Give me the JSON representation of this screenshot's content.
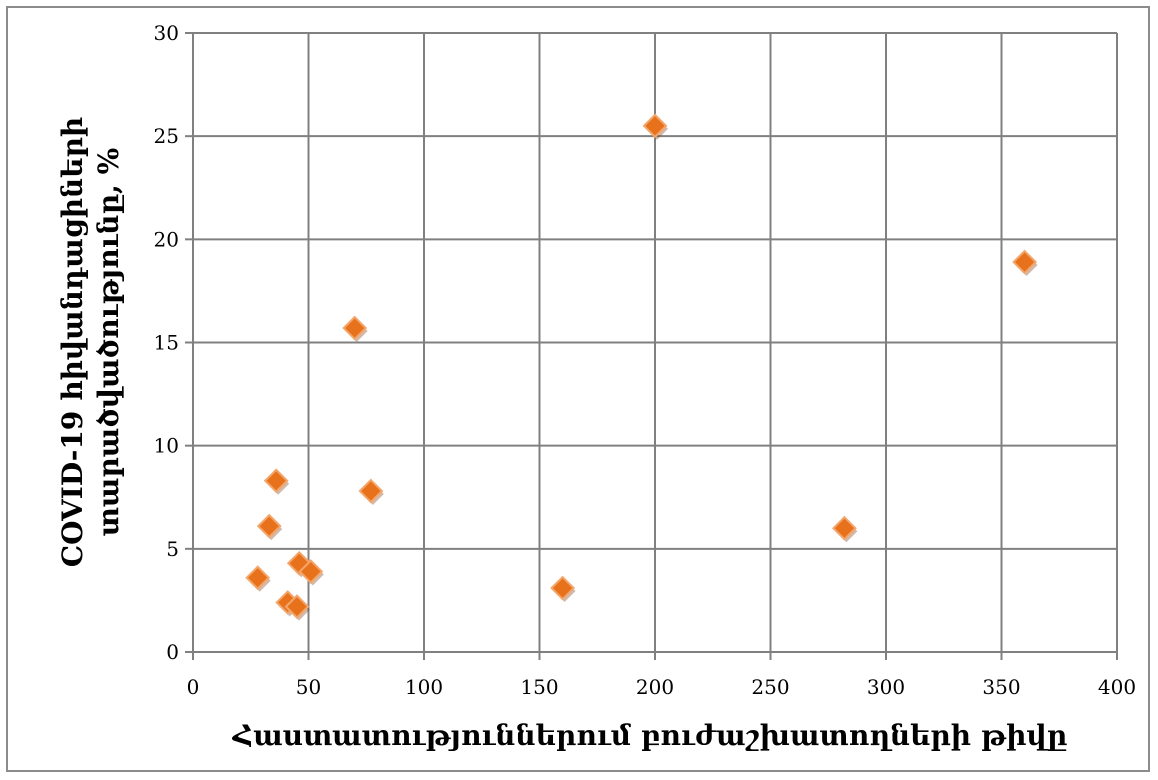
{
  "chart_data": {
    "type": "scatter",
    "xlabel": "Հաստատություններում բուժաշխատողների թիվը",
    "ylabel_lines": [
      "COVID-19 հիվանդացիների",
      "տարածվածությունը, %"
    ],
    "xlim": [
      0,
      400
    ],
    "ylim": [
      0,
      30
    ],
    "xticks": [
      0,
      50,
      100,
      150,
      200,
      250,
      300,
      350,
      400
    ],
    "yticks": [
      0,
      5,
      10,
      15,
      20,
      25,
      30
    ],
    "grid": true,
    "legend": "none",
    "marker": "diamond",
    "colors": {
      "marker_fill": "#e8721c",
      "marker_edge": "#f3a66b",
      "grid": "#808080"
    },
    "series": [
      {
        "points": [
          {
            "x": 28,
            "y": 3.6
          },
          {
            "x": 33,
            "y": 6.1
          },
          {
            "x": 36,
            "y": 8.3
          },
          {
            "x": 41,
            "y": 2.4
          },
          {
            "x": 45,
            "y": 2.2
          },
          {
            "x": 46,
            "y": 4.3
          },
          {
            "x": 51,
            "y": 3.9
          },
          {
            "x": 70,
            "y": 15.7
          },
          {
            "x": 77,
            "y": 7.8
          },
          {
            "x": 160,
            "y": 3.1
          },
          {
            "x": 200,
            "y": 25.5
          },
          {
            "x": 282,
            "y": 6.0
          },
          {
            "x": 360,
            "y": 18.9
          }
        ]
      }
    ]
  }
}
